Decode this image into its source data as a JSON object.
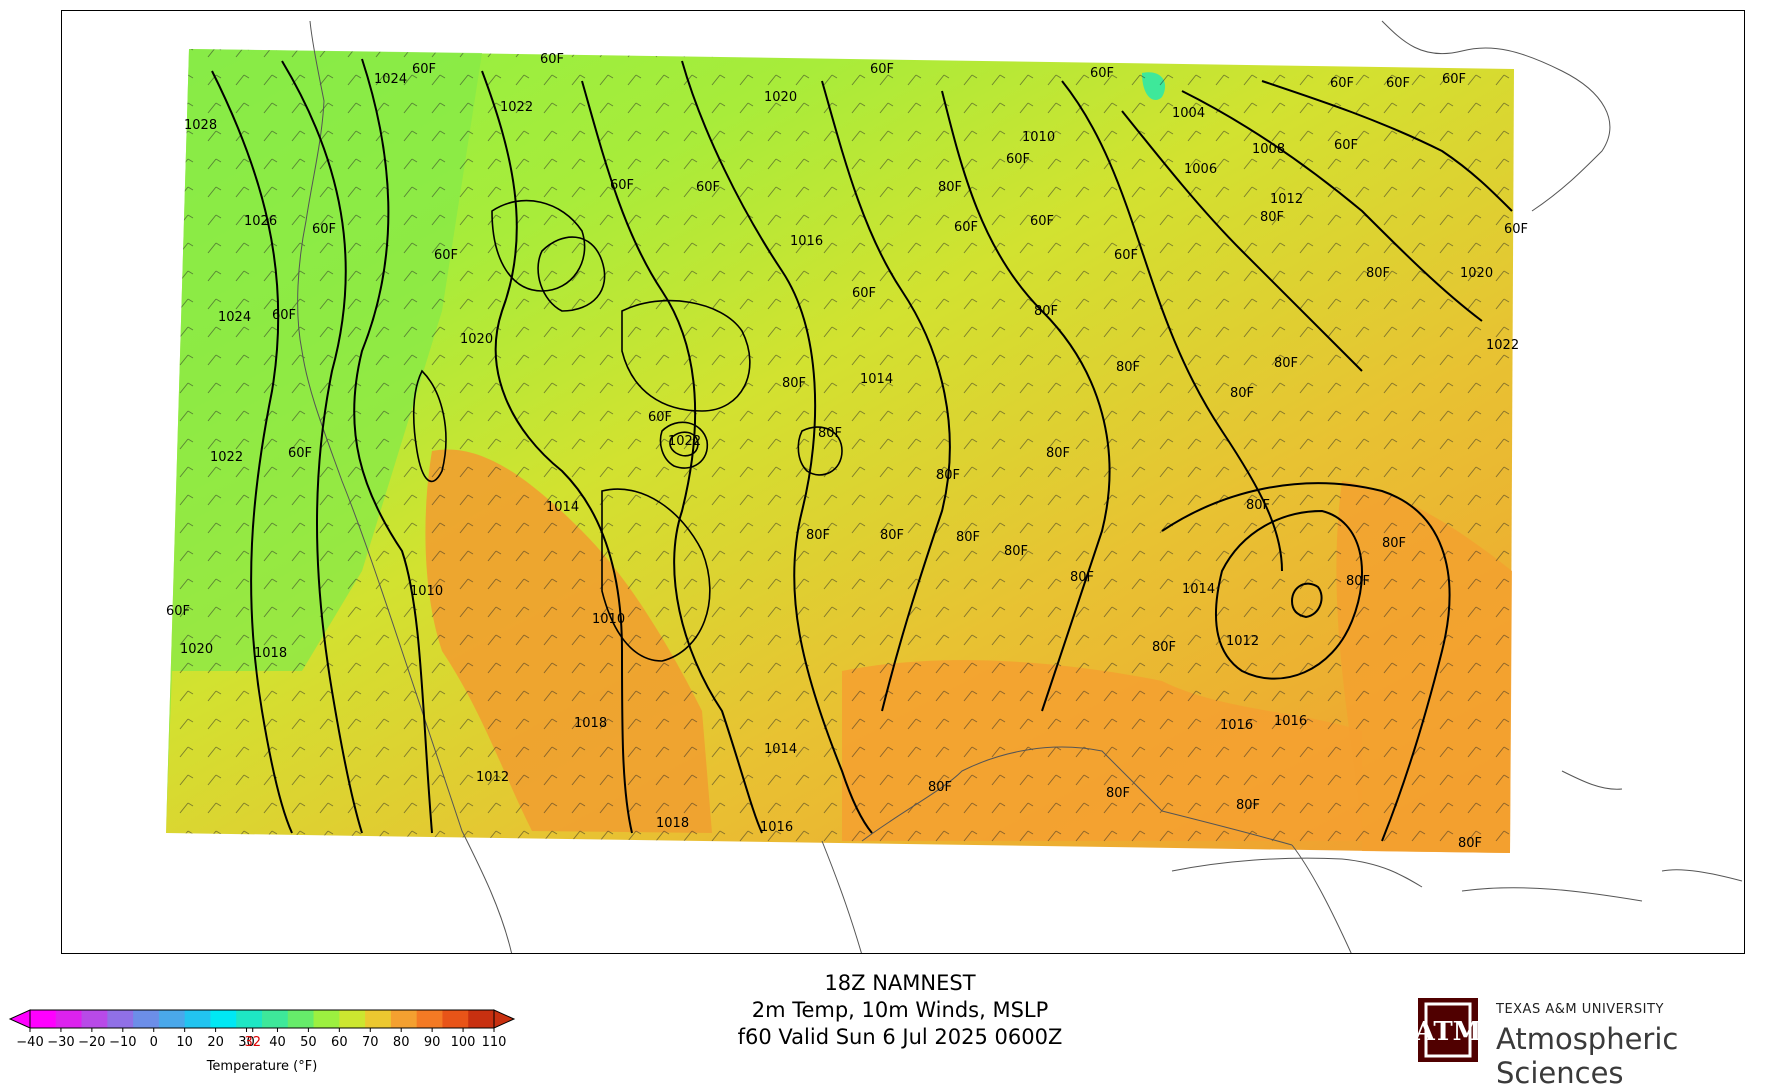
{
  "title": {
    "line1": "18Z NAMNEST",
    "line2": "2m Temp, 10m Winds, MSLP",
    "line3": "f60 Valid Sun 6 Jul 2025 0600Z"
  },
  "colorbar": {
    "label": "Temperature (°F)",
    "ticks": [
      "−40",
      "−30",
      "−20",
      "−10",
      "0",
      "10",
      "20",
      "30",
      "32",
      "40",
      "50",
      "60",
      "70",
      "80",
      "90",
      "100",
      "110"
    ],
    "colors": [
      "#ff00ff",
      "#dd22ee",
      "#b84ae8",
      "#9070e6",
      "#6c8ee8",
      "#4aa8ea",
      "#22c4f0",
      "#00e8f4",
      "#1ee6c4",
      "#3ee89a",
      "#66ec6a",
      "#9cf040",
      "#cce630",
      "#ecc830",
      "#f4a030",
      "#f47a24",
      "#e85418",
      "#c83010"
    ],
    "freezing_color": "#dd0000"
  },
  "logo": {
    "mark": "ATM",
    "university": "TEXAS A&M UNIVERSITY",
    "department": "Atmospheric Sciences",
    "brand_color": "#500000"
  },
  "map": {
    "isobar_labels": [
      "1028",
      "1026",
      "1024",
      "1022",
      "1020",
      "1018",
      "1016",
      "1014",
      "1012",
      "1010",
      "1008",
      "1006",
      "1004",
      "1022",
      "1020",
      "1016",
      "1014",
      "1012",
      "1010",
      "1024",
      "1022",
      "1020",
      "1018",
      "1016",
      "1014",
      "1022",
      "1014",
      "1012",
      "1018",
      "1016",
      "1020",
      "1010"
    ],
    "temp_labels": [
      "60F",
      "60F",
      "60F",
      "60F",
      "60F",
      "60F",
      "60F",
      "60F",
      "60F",
      "60F",
      "60F",
      "60F",
      "60F",
      "60F",
      "60F",
      "60F",
      "60F",
      "60F",
      "60F",
      "60F",
      "60F",
      "60F",
      "80F",
      "80F",
      "80F",
      "80F",
      "80F",
      "80F",
      "80F",
      "80F",
      "80F",
      "80F",
      "80F",
      "80F",
      "80F",
      "80F",
      "80F",
      "80F",
      "80F",
      "80F",
      "80F",
      "80F",
      "80F",
      "80F",
      "80F",
      "80F"
    ]
  }
}
